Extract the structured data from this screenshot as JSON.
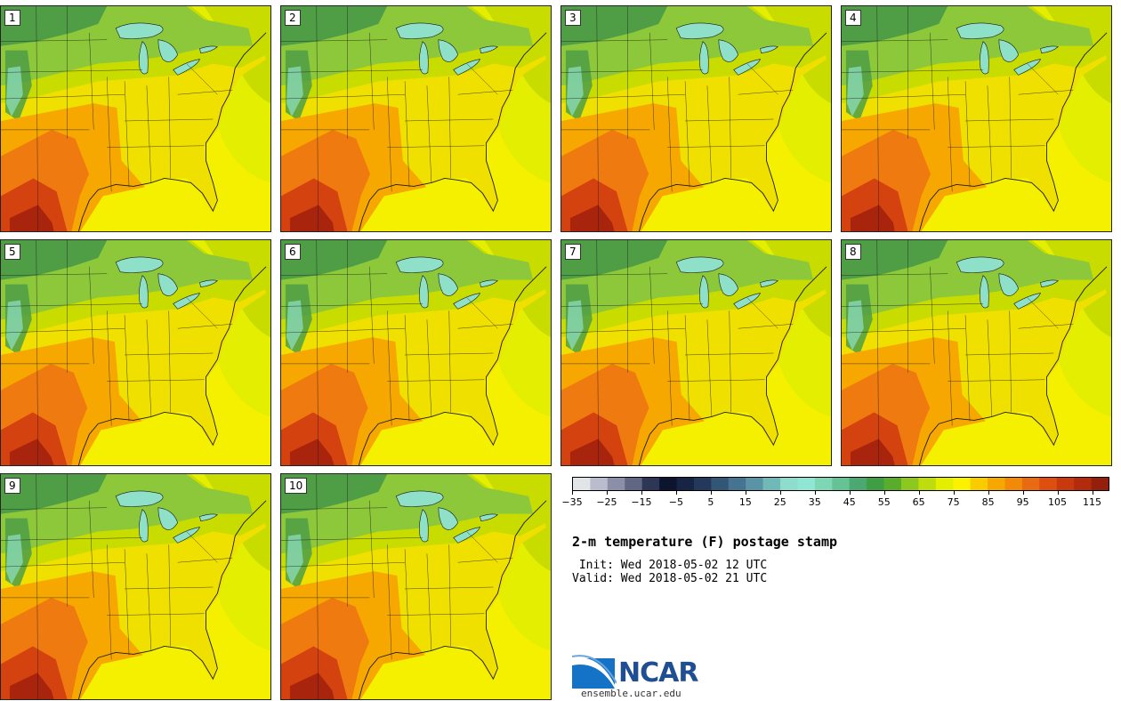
{
  "colors": {
    "ocean_warm": "#f5f000",
    "ocean_cool": "#e3ee00",
    "land_yellow": "#efe000",
    "land_yellow_green": "#c9dc00",
    "land_green": "#8cc83a",
    "land_dark_green": "#4f9e46",
    "orange": "#f7a800",
    "dark_orange": "#ef7a10",
    "red": "#d4420f",
    "dark_red": "#a8240d",
    "lake": "#8fe0c8",
    "boundary": "#1a1a1a"
  },
  "members": [
    {
      "id": "1",
      "label": "1",
      "warmth": 1.0
    },
    {
      "id": "2",
      "label": "2",
      "warmth": 1.05
    },
    {
      "id": "3",
      "label": "3",
      "warmth": 0.95
    },
    {
      "id": "4",
      "label": "4",
      "warmth": 1.05
    },
    {
      "id": "5",
      "label": "5",
      "warmth": 0.9
    },
    {
      "id": "6",
      "label": "6",
      "warmth": 0.92
    },
    {
      "id": "7",
      "label": "7",
      "warmth": 0.97
    },
    {
      "id": "8",
      "label": "8",
      "warmth": 1.0
    },
    {
      "id": "9",
      "label": "9",
      "warmth": 0.93
    },
    {
      "id": "10",
      "label": "10",
      "warmth": 1.0
    }
  ],
  "colorbar": {
    "min": -35,
    "max": 120,
    "interval": 5,
    "ticks": [
      -35,
      -25,
      -15,
      -5,
      5,
      15,
      25,
      35,
      45,
      55,
      65,
      75,
      85,
      95,
      105,
      115
    ],
    "tick_labels": [
      "−35",
      "−25",
      "−15",
      "−5",
      "5",
      "15",
      "25",
      "35",
      "45",
      "55",
      "65",
      "75",
      "85",
      "95",
      "105",
      "115"
    ],
    "colors": [
      "#e2e5e8",
      "#b9bccd",
      "#8c8fa8",
      "#5f6785",
      "#2e3658",
      "#0c1430",
      "#172444",
      "#23385a",
      "#335677",
      "#467391",
      "#5a93a6",
      "#73b8b8",
      "#8fdccc",
      "#8fe6d2",
      "#7ed6b4",
      "#65c294",
      "#4ba870",
      "#3f9e42",
      "#5aad2a",
      "#8ec81e",
      "#bfdc0c",
      "#e4ee00",
      "#fbf200",
      "#f9cc00",
      "#f7a800",
      "#f28a08",
      "#ea6a12",
      "#dd4e10",
      "#c83a0e",
      "#b42a0c",
      "#94200c"
    ]
  },
  "title": "2-m temperature (F) postage stamp",
  "init_line": " Init: Wed 2018-05-02 12 UTC",
  "valid_line": "Valid: Wed 2018-05-02 21 UTC",
  "logo": {
    "text": "NCAR",
    "url": "ensemble.ucar.edu"
  }
}
